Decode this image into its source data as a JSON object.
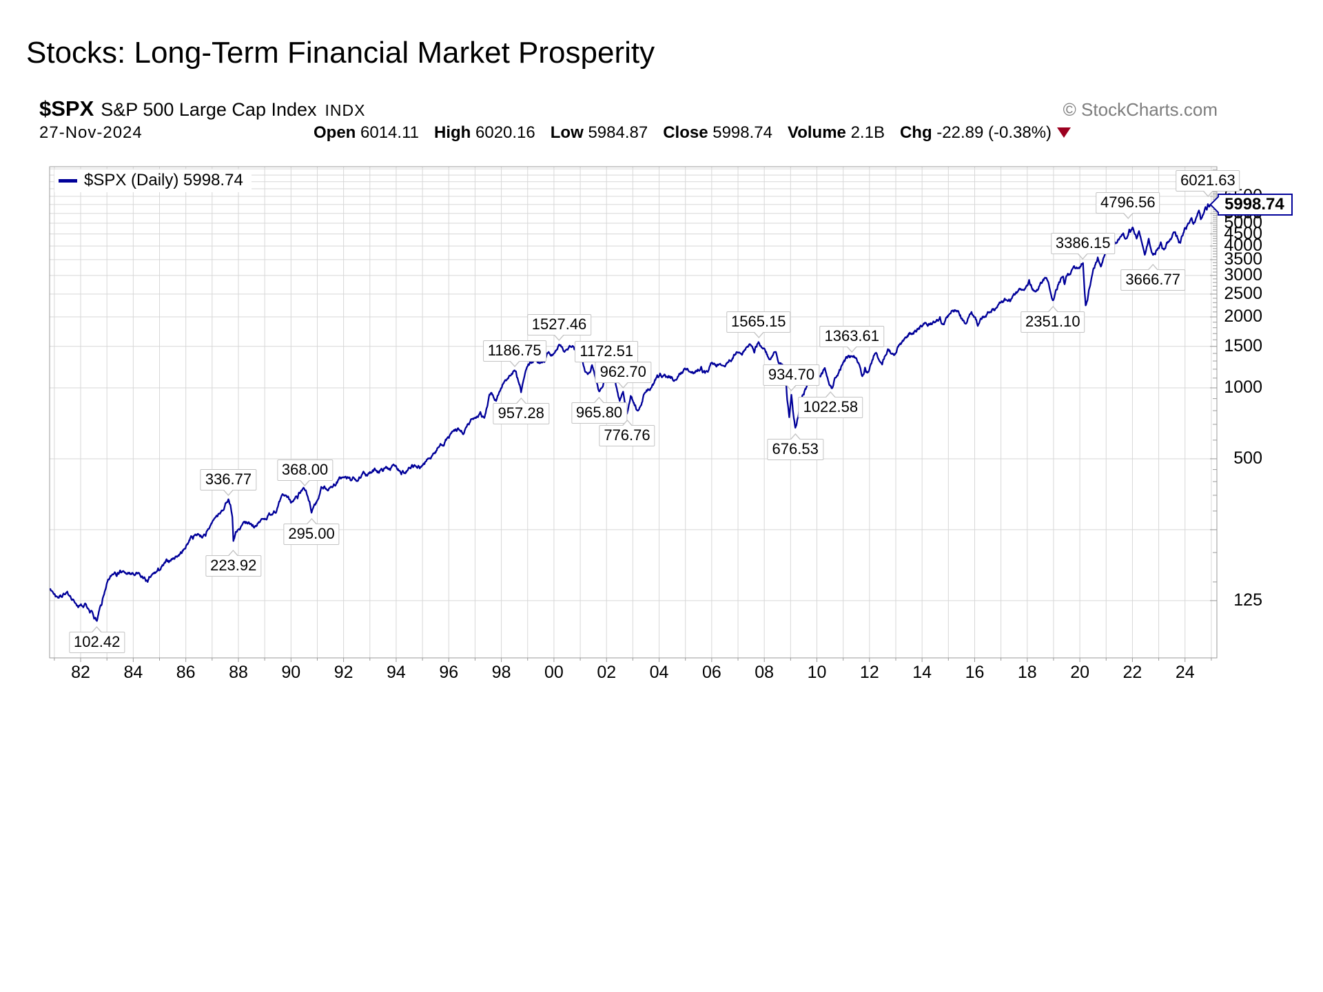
{
  "slide": {
    "title": "Stocks: Long-Term Financial Market Prosperity"
  },
  "chart": {
    "symbol": "$SPX",
    "name": "S&P 500 Large Cap Index",
    "exchange": "INDX",
    "attribution": "© StockCharts.com",
    "date": "27-Nov-2024",
    "quote": {
      "open_label": "Open",
      "open": "6014.11",
      "high_label": "High",
      "high": "6020.16",
      "low_label": "Low",
      "low": "5984.87",
      "close_label": "Close",
      "close": "5998.74",
      "volume_label": "Volume",
      "volume": "2.1B",
      "chg_label": "Chg",
      "chg": "-22.89 (-0.38%)"
    },
    "legend": "$SPX (Daily) 5998.74",
    "last_price": "5998.74",
    "colors": {
      "line": "#000099",
      "grid": "#d7d7d7",
      "axis": "#999999",
      "tag_border": "#000099",
      "chg_arrow": "#9c0020",
      "attribution": "#7d7d7d"
    }
  },
  "chart_data": {
    "type": "line",
    "title": "$SPX (Daily) 5998.74",
    "y_scale": "log",
    "grid": true,
    "legend_position": "top-left",
    "x_range": [
      1980.82,
      2025.2
    ],
    "y_range": [
      71,
      8700
    ],
    "last_price_value": 5998.74,
    "x_ticks": [
      {
        "label": "82",
        "year": 1982
      },
      {
        "label": "84",
        "year": 1984
      },
      {
        "label": "86",
        "year": 1986
      },
      {
        "label": "88",
        "year": 1988
      },
      {
        "label": "90",
        "year": 1990
      },
      {
        "label": "92",
        "year": 1992
      },
      {
        "label": "94",
        "year": 1994
      },
      {
        "label": "96",
        "year": 1996
      },
      {
        "label": "98",
        "year": 1998
      },
      {
        "label": "00",
        "year": 2000
      },
      {
        "label": "02",
        "year": 2002
      },
      {
        "label": "04",
        "year": 2004
      },
      {
        "label": "06",
        "year": 2006
      },
      {
        "label": "08",
        "year": 2008
      },
      {
        "label": "10",
        "year": 2010
      },
      {
        "label": "12",
        "year": 2012
      },
      {
        "label": "14",
        "year": 2014
      },
      {
        "label": "16",
        "year": 2016
      },
      {
        "label": "18",
        "year": 2018
      },
      {
        "label": "20",
        "year": 2020
      },
      {
        "label": "22",
        "year": 2022
      },
      {
        "label": "24",
        "year": 2024
      }
    ],
    "y_ticks": [
      6500,
      6000,
      5500,
      5000,
      4500,
      4000,
      3500,
      3000,
      2500,
      2000,
      1500,
      1000,
      500,
      125
    ],
    "gridline_values": [
      125,
      250,
      500,
      1000,
      1500,
      2000,
      2500,
      3000,
      3500,
      4000,
      4500,
      5000,
      5500,
      6000,
      6500,
      7000,
      7500,
      8000,
      8500
    ],
    "annotations": [
      {
        "label": "102.42",
        "year": 1982.62,
        "value": 102.42,
        "side": "below"
      },
      {
        "label": "223.92",
        "year": 1987.81,
        "value": 223.92,
        "side": "below",
        "dy": 5
      },
      {
        "label": "336.77",
        "year": 1987.62,
        "value": 336.77,
        "side": "above"
      },
      {
        "label": "295.00",
        "year": 1990.78,
        "value": 295.0,
        "side": "below"
      },
      {
        "label": "368.00",
        "year": 1990.53,
        "value": 368.0,
        "side": "above"
      },
      {
        "label": "957.28",
        "year": 1998.75,
        "value": 957.28,
        "side": "below"
      },
      {
        "label": "1186.75",
        "year": 1998.5,
        "value": 1186.75,
        "side": "above"
      },
      {
        "label": "1527.46",
        "year": 2000.2,
        "value": 1527.46,
        "side": "above"
      },
      {
        "label": "1172.51",
        "year": 2002.0,
        "value": 1172.51,
        "side": "above"
      },
      {
        "label": "962.70",
        "year": 2002.63,
        "value": 962.7,
        "side": "above"
      },
      {
        "label": "965.80",
        "year": 2001.72,
        "value": 965.8,
        "side": "below"
      },
      {
        "label": "776.76",
        "year": 2002.78,
        "value": 776.76,
        "side": "below"
      },
      {
        "label": "1565.15",
        "year": 2007.78,
        "value": 1565.15,
        "side": "above"
      },
      {
        "label": "934.70",
        "year": 2009.03,
        "value": 934.7,
        "side": "above"
      },
      {
        "label": "676.53",
        "year": 2009.18,
        "value": 676.53,
        "side": "below"
      },
      {
        "label": "1022.58",
        "year": 2010.52,
        "value": 1022.58,
        "side": "below"
      },
      {
        "label": "1363.61",
        "year": 2011.33,
        "value": 1363.61,
        "side": "above"
      },
      {
        "label": "2351.10",
        "year": 2018.97,
        "value": 2351.1,
        "side": "below"
      },
      {
        "label": "3386.15",
        "year": 2020.12,
        "value": 3386.15,
        "side": "above"
      },
      {
        "label": "3666.77",
        "year": 2022.78,
        "value": 3666.77,
        "side": "below",
        "dy": 5
      },
      {
        "label": "4796.56",
        "year": 2022.01,
        "value": 4796.56,
        "side": "above",
        "dx": -7,
        "dy": -7
      },
      {
        "label": "6021.63",
        "year": 2024.87,
        "value": 6021.63,
        "side": "above",
        "dy": -5
      }
    ],
    "series": [
      {
        "name": "$SPX",
        "points": [
          [
            1980.85,
            140
          ],
          [
            1981.1,
            130
          ],
          [
            1981.35,
            134
          ],
          [
            1981.6,
            131
          ],
          [
            1981.8,
            122
          ],
          [
            1982.1,
            117
          ],
          [
            1982.35,
            111
          ],
          [
            1982.62,
            102.42
          ],
          [
            1982.8,
            120
          ],
          [
            1982.95,
            140
          ],
          [
            1983.3,
            165
          ],
          [
            1983.5,
            168
          ],
          [
            1983.75,
            162
          ],
          [
            1984.05,
            160
          ],
          [
            1984.3,
            157
          ],
          [
            1984.55,
            150
          ],
          [
            1985.0,
            168
          ],
          [
            1985.5,
            188
          ],
          [
            1985.95,
            207
          ],
          [
            1986.2,
            235
          ],
          [
            1986.45,
            240
          ],
          [
            1986.75,
            235
          ],
          [
            1987.1,
            280
          ],
          [
            1987.3,
            292
          ],
          [
            1987.45,
            305
          ],
          [
            1987.62,
            336.77
          ],
          [
            1987.7,
            318
          ],
          [
            1987.77,
            283
          ],
          [
            1987.81,
            223.92
          ],
          [
            1987.9,
            245
          ],
          [
            1988.05,
            250
          ],
          [
            1988.35,
            265
          ],
          [
            1988.65,
            260
          ],
          [
            1988.95,
            278
          ],
          [
            1989.35,
            300
          ],
          [
            1989.75,
            348
          ],
          [
            1990.05,
            330
          ],
          [
            1990.25,
            339
          ],
          [
            1990.53,
            368
          ],
          [
            1990.78,
            295
          ],
          [
            1991.05,
            340
          ],
          [
            1991.15,
            380
          ],
          [
            1991.45,
            375
          ],
          [
            1991.95,
            417
          ],
          [
            1992.3,
            405
          ],
          [
            1992.65,
            415
          ],
          [
            1992.95,
            435
          ],
          [
            1993.4,
            448
          ],
          [
            1993.95,
            466
          ],
          [
            1994.25,
            445
          ],
          [
            1994.55,
            455
          ],
          [
            1994.9,
            455
          ],
          [
            1995.4,
            525
          ],
          [
            1995.95,
            615
          ],
          [
            1996.3,
            655
          ],
          [
            1996.55,
            635
          ],
          [
            1996.95,
            740
          ],
          [
            1997.2,
            790
          ],
          [
            1997.35,
            745
          ],
          [
            1997.6,
            950
          ],
          [
            1997.8,
            880
          ],
          [
            1997.95,
            970
          ],
          [
            1998.15,
            1080
          ],
          [
            1998.5,
            1186.75
          ],
          [
            1998.65,
            1060
          ],
          [
            1998.75,
            957.28
          ],
          [
            1998.95,
            1200
          ],
          [
            1999.25,
            1310
          ],
          [
            1999.5,
            1280
          ],
          [
            1999.8,
            1420
          ],
          [
            2000.0,
            1400
          ],
          [
            2000.2,
            1527.46
          ],
          [
            2000.4,
            1420
          ],
          [
            2000.65,
            1490
          ],
          [
            2000.9,
            1350
          ],
          [
            2001.05,
            1370
          ],
          [
            2001.25,
            1160
          ],
          [
            2001.45,
            1250
          ],
          [
            2001.72,
            965.8
          ],
          [
            2002.0,
            1172.51
          ],
          [
            2002.3,
            1100
          ],
          [
            2002.5,
            880
          ],
          [
            2002.63,
            962.7
          ],
          [
            2002.78,
            776.76
          ],
          [
            2002.92,
            925
          ],
          [
            2003.2,
            800
          ],
          [
            2003.45,
            950
          ],
          [
            2003.7,
            1000
          ],
          [
            2003.98,
            1110
          ],
          [
            2004.2,
            1140
          ],
          [
            2004.6,
            1080
          ],
          [
            2004.98,
            1210
          ],
          [
            2005.3,
            1150
          ],
          [
            2005.6,
            1230
          ],
          [
            2005.8,
            1180
          ],
          [
            2006.0,
            1280
          ],
          [
            2006.45,
            1240
          ],
          [
            2006.95,
            1420
          ],
          [
            2007.15,
            1380
          ],
          [
            2007.45,
            1535
          ],
          [
            2007.62,
            1410
          ],
          [
            2007.78,
            1565.15
          ],
          [
            2008.0,
            1470
          ],
          [
            2008.2,
            1320
          ],
          [
            2008.4,
            1420
          ],
          [
            2008.55,
            1270
          ],
          [
            2008.7,
            1250
          ],
          [
            2008.8,
            1160
          ],
          [
            2008.87,
            890
          ],
          [
            2008.95,
            750
          ],
          [
            2009.03,
            934.7
          ],
          [
            2009.18,
            676.53
          ],
          [
            2009.45,
            930
          ],
          [
            2009.7,
            1070
          ],
          [
            2009.95,
            1110
          ],
          [
            2010.3,
            1215
          ],
          [
            2010.52,
            1022.58
          ],
          [
            2010.68,
            1100
          ],
          [
            2010.95,
            1250
          ],
          [
            2011.33,
            1363.61
          ],
          [
            2011.55,
            1280
          ],
          [
            2011.73,
            1120
          ],
          [
            2011.83,
            1220
          ],
          [
            2011.93,
            1160
          ],
          [
            2012.25,
            1410
          ],
          [
            2012.43,
            1280
          ],
          [
            2012.7,
            1460
          ],
          [
            2012.88,
            1400
          ],
          [
            2013.35,
            1630
          ],
          [
            2013.95,
            1840
          ],
          [
            2014.68,
            2000
          ],
          [
            2014.78,
            1870
          ],
          [
            2015.05,
            2060
          ],
          [
            2015.38,
            2120
          ],
          [
            2015.65,
            1870
          ],
          [
            2015.88,
            2100
          ],
          [
            2016.12,
            1830
          ],
          [
            2016.5,
            2100
          ],
          [
            2016.82,
            2180
          ],
          [
            2017.4,
            2390
          ],
          [
            2017.95,
            2680
          ],
          [
            2018.07,
            2872
          ],
          [
            2018.25,
            2580
          ],
          [
            2018.55,
            2780
          ],
          [
            2018.73,
            2930
          ],
          [
            2018.97,
            2351.1
          ],
          [
            2019.3,
            2940
          ],
          [
            2019.42,
            2750
          ],
          [
            2019.6,
            3020
          ],
          [
            2019.95,
            3230
          ],
          [
            2020.12,
            3386.15
          ],
          [
            2020.22,
            2237
          ],
          [
            2020.45,
            2950
          ],
          [
            2020.68,
            3580
          ],
          [
            2020.8,
            3270
          ],
          [
            2020.97,
            3756
          ],
          [
            2021.3,
            4180
          ],
          [
            2021.65,
            4530
          ],
          [
            2021.75,
            4300
          ],
          [
            2021.88,
            4700
          ],
          [
            2022.01,
            4796.56
          ],
          [
            2022.16,
            4300
          ],
          [
            2022.25,
            4630
          ],
          [
            2022.47,
            3670
          ],
          [
            2022.62,
            4300
          ],
          [
            2022.78,
            3666.77
          ],
          [
            2023.08,
            4150
          ],
          [
            2023.2,
            3860
          ],
          [
            2023.57,
            4580
          ],
          [
            2023.82,
            4120
          ],
          [
            2023.99,
            4770
          ],
          [
            2024.25,
            5260
          ],
          [
            2024.32,
            4960
          ],
          [
            2024.53,
            5660
          ],
          [
            2024.6,
            5190
          ],
          [
            2024.78,
            5860
          ],
          [
            2024.83,
            5700
          ],
          [
            2024.87,
            6021.63
          ],
          [
            2024.92,
            5870
          ],
          [
            2024.97,
            5998.74
          ]
        ]
      }
    ]
  }
}
